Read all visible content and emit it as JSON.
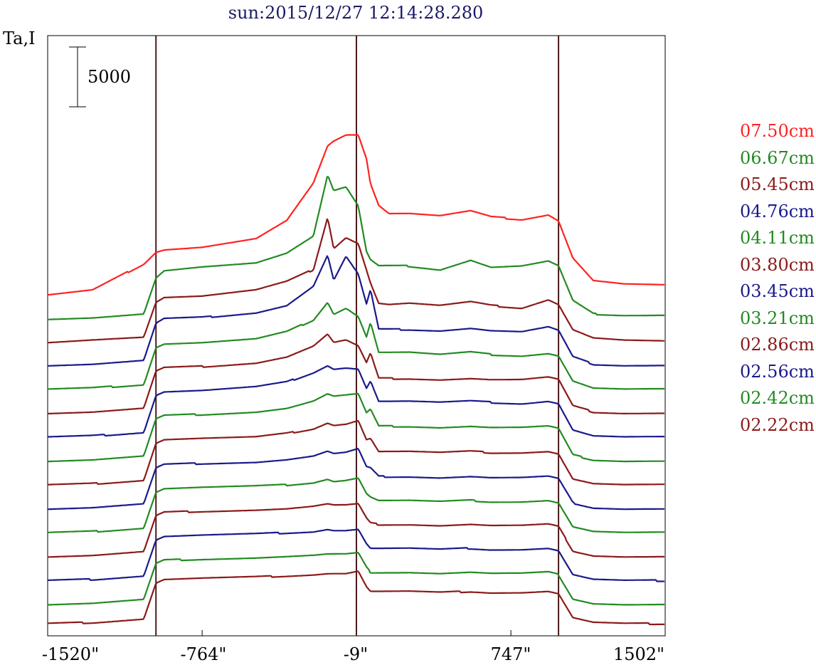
{
  "chart_data": {
    "type": "line",
    "title": "sun:2015/12/27 12:14:28.280",
    "ylabel": "Ta,I",
    "xlim": [
      -1520,
      1502
    ],
    "x_tick_labels": [
      "-1520\"",
      "-764\"",
      "-9\"",
      "747\"",
      "1502\""
    ],
    "x_ticks": [
      -1520,
      -764,
      -9,
      747,
      1502
    ],
    "scale_bar": {
      "label": "5000",
      "value": 5000
    },
    "reference_lines_x": [
      -990,
      -9,
      980
    ],
    "grid": false,
    "legend_position": "right",
    "x_knots": [
      -1520,
      -1300,
      -1050,
      -990,
      -950,
      -764,
      -500,
      -350,
      -220,
      -150,
      -120,
      -60,
      0,
      40,
      60,
      100,
      150,
      250,
      400,
      550,
      650,
      800,
      930,
      980,
      1050,
      1150,
      1300,
      1502
    ],
    "series": [
      {
        "name": "07.50cm",
        "color": "#ff2222",
        "baseline": 27600,
        "offset_knots": [
          -1520,
          2000
        ],
        "values": [
          0,
          400,
          2600,
          3600,
          3800,
          4000,
          4700,
          6200,
          9300,
          12400,
          12800,
          13300,
          13300,
          11300,
          9200,
          7400,
          6700,
          6700,
          6500,
          6900,
          6400,
          6200,
          6600,
          6100,
          3000,
          1100,
          800,
          700
        ]
      },
      {
        "name": "06.67cm",
        "color": "#228b22",
        "baseline": 25600,
        "values": [
          0,
          100,
          400,
          3400,
          4000,
          4300,
          4600,
          5400,
          6800,
          11900,
          10600,
          10900,
          9300,
          5500,
          4800,
          4300,
          4300,
          4300,
          4000,
          4800,
          4200,
          4300,
          4700,
          4300,
          1400,
          300,
          200,
          200
        ]
      },
      {
        "name": "05.45cm",
        "color": "#8b1a1a",
        "baseline": 23600,
        "values": [
          0,
          200,
          400,
          3300,
          3700,
          3800,
          4300,
          5000,
          6000,
          10400,
          7800,
          8700,
          8200,
          6000,
          4900,
          3200,
          3100,
          3200,
          3000,
          3300,
          3000,
          2800,
          3500,
          3100,
          1000,
          300,
          100,
          0
        ]
      },
      {
        "name": "04.76cm",
        "color": "#1a1a8b",
        "baseline": 21600,
        "values": [
          0,
          100,
          400,
          3500,
          3900,
          4000,
          4400,
          5000,
          6600,
          9200,
          7100,
          9100,
          7600,
          5100,
          6300,
          3000,
          3000,
          3000,
          2900,
          3100,
          2900,
          2800,
          3200,
          2900,
          700,
          100,
          0,
          0
        ]
      },
      {
        "name": "04.11cm",
        "color": "#228b22",
        "baseline": 19600,
        "values": [
          0,
          100,
          400,
          3500,
          3800,
          3900,
          4200,
          4800,
          5800,
          7300,
          6300,
          6800,
          6100,
          4400,
          5600,
          3100,
          3100,
          3100,
          2900,
          3100,
          2900,
          2800,
          3000,
          2800,
          700,
          100,
          0,
          0
        ]
      },
      {
        "name": "03.80cm",
        "color": "#8b1a1a",
        "baseline": 17600,
        "values": [
          0,
          100,
          400,
          3500,
          3800,
          3900,
          4200,
          4700,
          5600,
          6600,
          5900,
          6100,
          5600,
          4200,
          5000,
          2900,
          2900,
          2900,
          2800,
          2900,
          2800,
          2800,
          3000,
          2800,
          600,
          100,
          0,
          0
        ]
      },
      {
        "name": "03.45cm",
        "color": "#1a1a8b",
        "baseline": 15600,
        "values": [
          0,
          100,
          400,
          3500,
          3800,
          3900,
          4200,
          4600,
          5400,
          6000,
          5700,
          5800,
          5700,
          4100,
          4700,
          3000,
          3000,
          3000,
          2900,
          3000,
          2900,
          2800,
          3000,
          2800,
          600,
          100,
          0,
          0
        ]
      },
      {
        "name": "03.21cm",
        "color": "#228b22",
        "baseline": 13600,
        "values": [
          0,
          100,
          400,
          3500,
          3800,
          3900,
          4100,
          4400,
          5000,
          5600,
          5400,
          5500,
          5600,
          4000,
          4300,
          2900,
          2900,
          2900,
          2800,
          2900,
          2800,
          2800,
          2900,
          2700,
          500,
          100,
          0,
          0
        ]
      },
      {
        "name": "02.86cm",
        "color": "#8b1a1a",
        "baseline": 11600,
        "values": [
          0,
          100,
          400,
          3500,
          3800,
          3900,
          4000,
          4300,
          4700,
          5200,
          5000,
          5100,
          5400,
          3800,
          3900,
          2800,
          2800,
          2800,
          2700,
          2800,
          2700,
          2700,
          2800,
          2600,
          500,
          100,
          0,
          0
        ]
      },
      {
        "name": "02.56cm",
        "color": "#1a1a8b",
        "baseline": 9600,
        "values": [
          0,
          100,
          400,
          3400,
          3700,
          3800,
          3900,
          4100,
          4400,
          4800,
          4600,
          4700,
          5000,
          3500,
          3400,
          2700,
          2700,
          2700,
          2600,
          2700,
          2600,
          2600,
          2700,
          2500,
          500,
          100,
          0,
          0
        ]
      },
      {
        "name": "02.42cm",
        "color": "#228b22",
        "baseline": 7600,
        "values": [
          0,
          100,
          400,
          3400,
          3700,
          3800,
          3900,
          4000,
          4200,
          4500,
          4300,
          4400,
          4600,
          3300,
          3000,
          2700,
          2700,
          2700,
          2600,
          2700,
          2600,
          2600,
          2700,
          2500,
          500,
          100,
          0,
          0
        ]
      },
      {
        "name": "02.22cm",
        "color": "#8b1a1a",
        "baseline": 5600,
        "values": [
          0,
          100,
          400,
          3400,
          3700,
          3800,
          3900,
          4000,
          4200,
          4400,
          4300,
          4300,
          4400,
          3200,
          2800,
          2700,
          2700,
          2700,
          2600,
          2700,
          2600,
          2600,
          2700,
          2500,
          500,
          100,
          0,
          0
        ]
      },
      {
        "name": "",
        "color": "#1a1a8b",
        "baseline": 3600,
        "values": [
          0,
          100,
          400,
          3400,
          3700,
          3800,
          3900,
          4000,
          4100,
          4300,
          4200,
          4200,
          4300,
          3100,
          2700,
          2700,
          2700,
          2700,
          2600,
          2700,
          2600,
          2600,
          2700,
          2500,
          500,
          100,
          0,
          0
        ]
      },
      {
        "name": "",
        "color": "#228b22",
        "baseline": 1600,
        "values": [
          0,
          100,
          400,
          3400,
          3700,
          3800,
          3900,
          4000,
          4100,
          4200,
          4200,
          4200,
          4300,
          3100,
          2700,
          2700,
          2700,
          2700,
          2600,
          2700,
          2600,
          2600,
          2700,
          2500,
          500,
          100,
          0,
          0
        ]
      },
      {
        "name": "",
        "color": "#8b1a1a",
        "baseline": 0,
        "values": [
          0,
          100,
          400,
          3400,
          3700,
          3800,
          3900,
          4000,
          4100,
          4200,
          4200,
          4200,
          4400,
          3100,
          2700,
          2700,
          2700,
          2700,
          2600,
          2700,
          2600,
          2600,
          2700,
          2500,
          500,
          100,
          0,
          0
        ]
      }
    ]
  }
}
